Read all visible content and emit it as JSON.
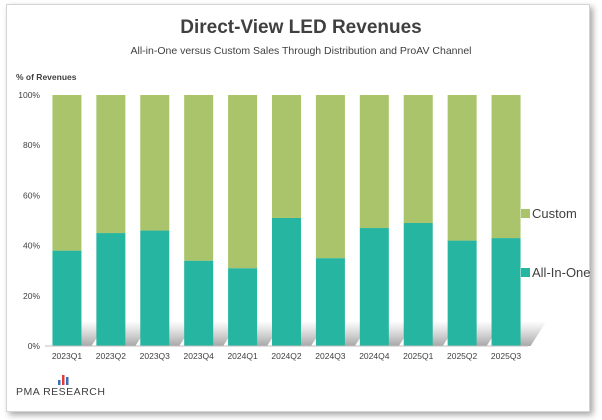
{
  "chart_data": {
    "type": "bar",
    "stacked": true,
    "title": "Direct-View LED Revenues",
    "subtitle": "All-in-One versus Custom Sales Through Distribution and ProAV Channel",
    "ylabel": "% of Revenues",
    "xlabel": "",
    "ylim": [
      0,
      100
    ],
    "yticks": [
      "0%",
      "20%",
      "40%",
      "60%",
      "80%",
      "100%"
    ],
    "categories": [
      "2023Q1",
      "2023Q2",
      "2023Q3",
      "2023Q4",
      "2024Q1",
      "2024Q2",
      "2024Q3",
      "2024Q4",
      "2025Q1",
      "2025Q2",
      "2025Q3"
    ],
    "series": [
      {
        "name": "All-In-One",
        "color": "#26b5a0",
        "values": [
          38,
          45,
          46,
          34,
          31,
          51,
          35,
          47,
          49,
          42,
          43
        ]
      },
      {
        "name": "Custom",
        "color": "#a9c46a",
        "values": [
          62,
          55,
          54,
          66,
          69,
          49,
          65,
          53,
          51,
          58,
          57
        ]
      }
    ],
    "legend": [
      "Custom",
      "All-In-One"
    ],
    "legend_position": "right"
  },
  "brand": {
    "name": "PMA RESEARCH"
  }
}
